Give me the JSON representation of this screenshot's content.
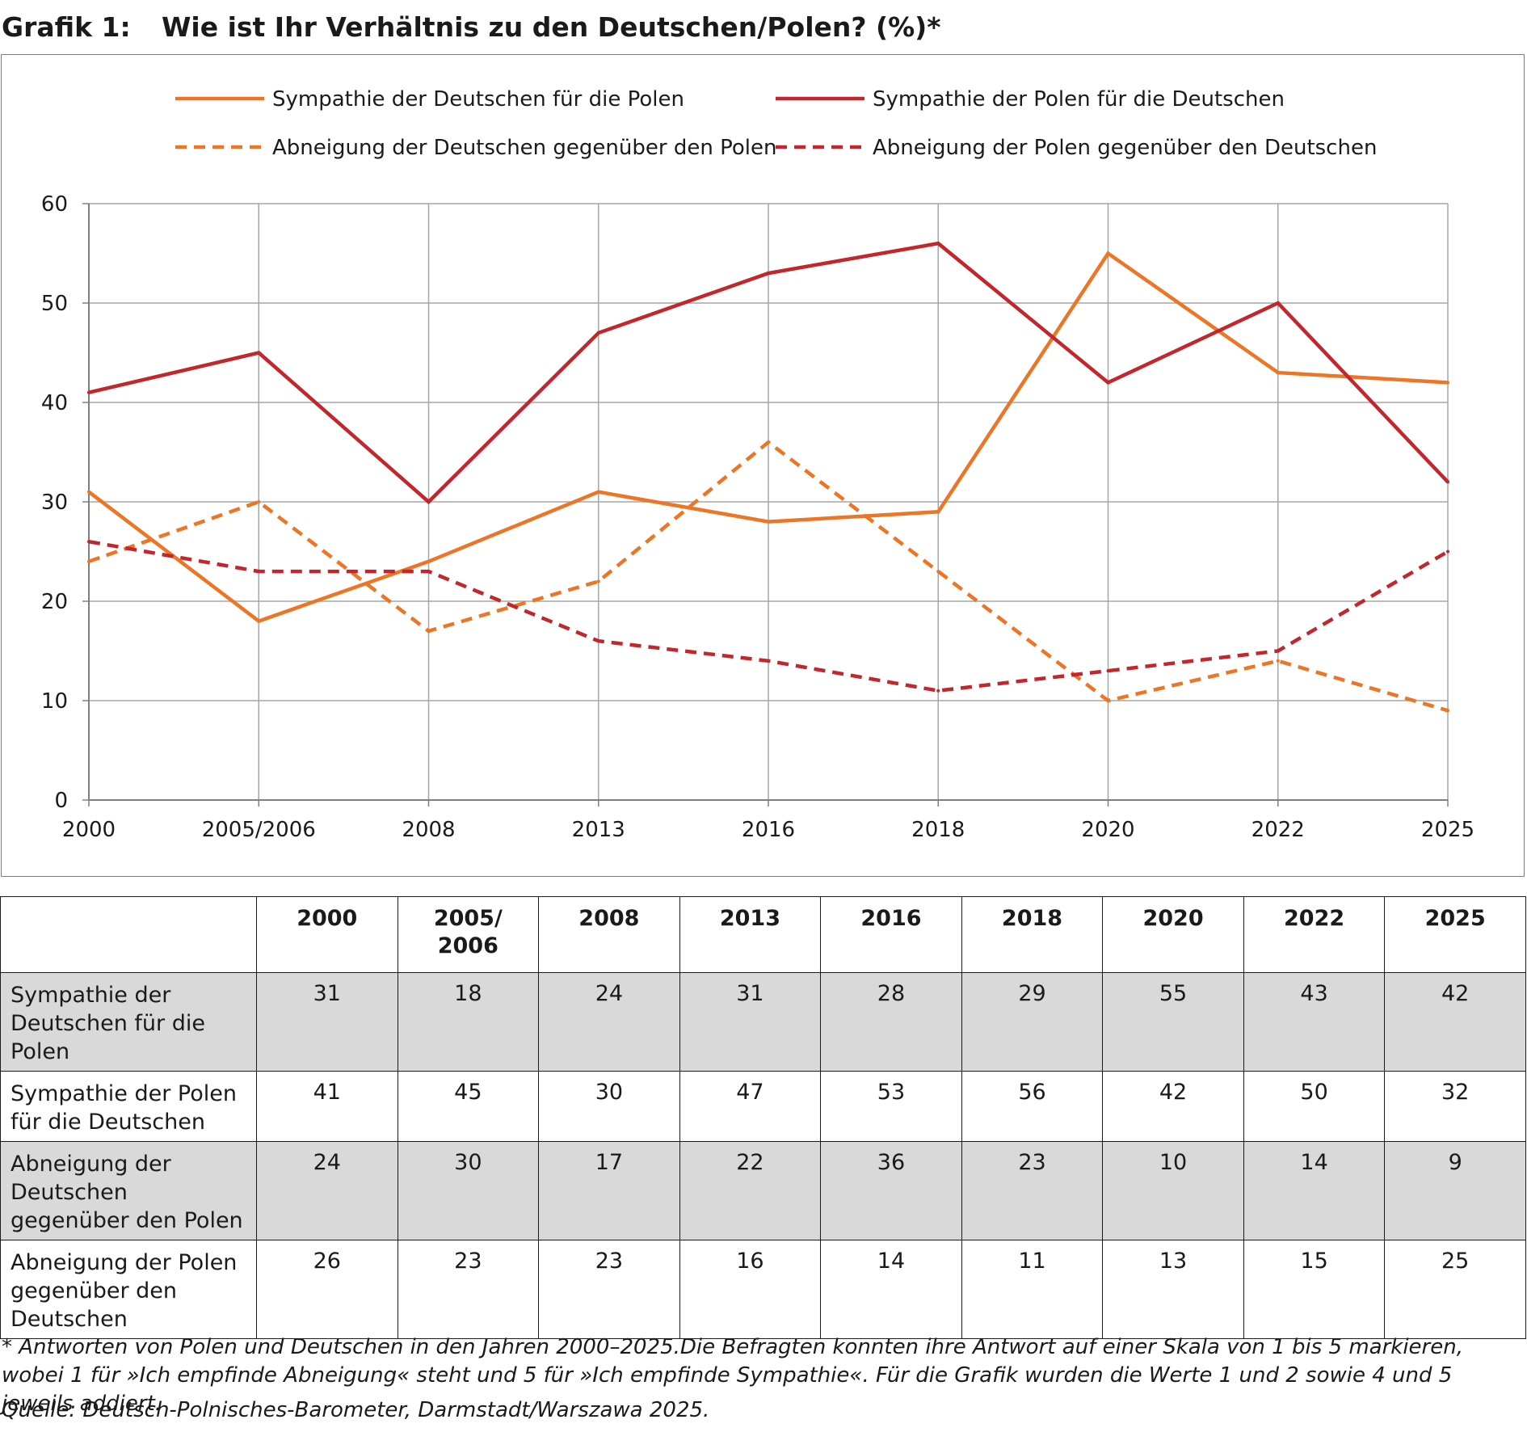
{
  "heading": {
    "number": "Grafik 1:",
    "title": "Wie ist Ihr Verhältnis zu den Deutschen/Polen? (%)*"
  },
  "chart_data": {
    "type": "line",
    "categories": [
      "2000",
      "2005/2006",
      "2008",
      "2013",
      "2016",
      "2018",
      "2020",
      "2022",
      "2025"
    ],
    "ylim": [
      0,
      60
    ],
    "yticks": [
      0,
      10,
      20,
      30,
      40,
      50,
      60
    ],
    "grid": true,
    "legend_position": "top",
    "series": [
      {
        "name": "Sympathie der Deutschen für die Polen",
        "color": "#ec7526",
        "dashed": false,
        "values": [
          31,
          18,
          24,
          31,
          28,
          29,
          55,
          43,
          42
        ]
      },
      {
        "name": "Sympathie der Polen für die Deutschen",
        "color": "#c1272d",
        "dashed": false,
        "values": [
          41,
          45,
          30,
          47,
          53,
          56,
          42,
          50,
          32
        ]
      },
      {
        "name": "Abneigung der Deutschen gegenüber den Polen",
        "color": "#ec7526",
        "dashed": true,
        "values": [
          24,
          30,
          17,
          22,
          36,
          23,
          10,
          14,
          9
        ]
      },
      {
        "name": "Abneigung der Polen gegenüber den Deutschen",
        "color": "#c1272d",
        "dashed": true,
        "values": [
          26,
          23,
          23,
          16,
          14,
          11,
          13,
          15,
          25
        ]
      }
    ]
  },
  "table": {
    "headers": [
      "2000",
      "2005/\n2006",
      "2008",
      "2013",
      "2016",
      "2018",
      "2020",
      "2022",
      "2025"
    ],
    "rows": [
      {
        "label": "Sympathie der Deutschen für die Polen",
        "values": [
          "31",
          "18",
          "24",
          "31",
          "28",
          "29",
          "55",
          "43",
          "42"
        ]
      },
      {
        "label": "Sympathie der Polen für die Deutschen",
        "values": [
          "41",
          "45",
          "30",
          "47",
          "53",
          "56",
          "42",
          "50",
          "32"
        ]
      },
      {
        "label": "Abneigung der Deutschen gegenüber den Polen",
        "values": [
          "24",
          "30",
          "17",
          "22",
          "36",
          "23",
          "10",
          "14",
          "9"
        ]
      },
      {
        "label": "Abneigung der Polen gegenüber den Deutschen",
        "values": [
          "26",
          "23",
          "23",
          "16",
          "14",
          "11",
          "13",
          "15",
          "25"
        ]
      }
    ]
  },
  "footnote": "* Antworten von Polen und Deutschen in den Jahren 2000–2025.Die Befragten konnten ihre Antwort auf einer Skala von 1 bis 5 markieren, wobei 1 für »Ich empfinde Abneigung« steht und 5 für »Ich empfinde Sympathie«. Für die Grafik wurden die Werte 1 und 2 sowie 4 und 5 jeweils addiert.",
  "source": "Quelle: Deutsch-Polnisches-Barometer, Darmstadt/Warszawa 2025."
}
